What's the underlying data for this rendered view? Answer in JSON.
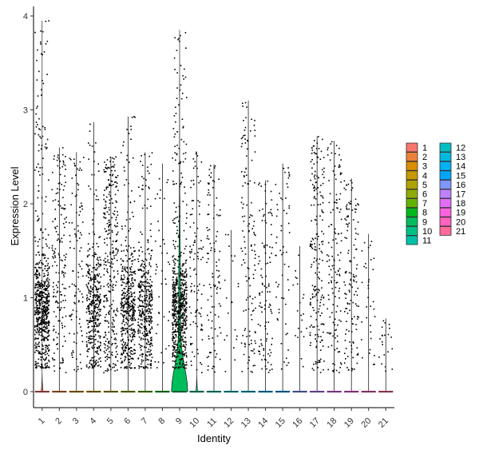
{
  "chart_data": {
    "type": "violin",
    "title": "",
    "xlabel": "Identity",
    "ylabel": "Expression Level",
    "ylim": [
      -0.2,
      4.1
    ],
    "yticks": [
      0,
      1,
      2,
      3,
      4
    ],
    "grid": false,
    "legend_position": "right",
    "points_overlay": true,
    "point_color": "#000000",
    "categories": [
      "1",
      "2",
      "3",
      "4",
      "5",
      "6",
      "7",
      "8",
      "9",
      "10",
      "11",
      "12",
      "13",
      "14",
      "15",
      "16",
      "17",
      "18",
      "19",
      "20",
      "21"
    ],
    "colors": [
      "#F8766D",
      "#EC8239",
      "#DB8E00",
      "#C79800",
      "#AEA200",
      "#8FAA00",
      "#64B200",
      "#00B81B",
      "#00BD5C",
      "#00C085",
      "#00C1A7",
      "#00BFC4",
      "#00BADE",
      "#00B2F3",
      "#00A6FF",
      "#7F96FF",
      "#BC81FF",
      "#E26EF7",
      "#F863DF",
      "#FF62BF",
      "#FF6A9A"
    ],
    "series": [
      {
        "name": "1",
        "max": 3.95,
        "point_density": 1.0,
        "violin_peak": 0.12
      },
      {
        "name": "2",
        "max": 2.6,
        "point_density": 0.25,
        "violin_peak": 0.0
      },
      {
        "name": "3",
        "max": 2.55,
        "point_density": 0.15,
        "violin_peak": 0.0
      },
      {
        "name": "4",
        "max": 2.87,
        "point_density": 0.6,
        "violin_peak": 0.0
      },
      {
        "name": "5",
        "max": 2.5,
        "point_density": 0.45,
        "violin_peak": 0.0
      },
      {
        "name": "6",
        "max": 2.93,
        "point_density": 0.65,
        "violin_peak": 0.0
      },
      {
        "name": "7",
        "max": 2.55,
        "point_density": 0.6,
        "violin_peak": 0.0
      },
      {
        "name": "8",
        "max": 2.43,
        "point_density": 0.05,
        "violin_peak": 0.0
      },
      {
        "name": "9",
        "max": 3.85,
        "point_density": 1.0,
        "violin_peak": 1.0
      },
      {
        "name": "10",
        "max": 2.55,
        "point_density": 0.15,
        "violin_peak": 0.1
      },
      {
        "name": "11",
        "max": 2.42,
        "point_density": 0.15,
        "violin_peak": 0.0
      },
      {
        "name": "12",
        "max": 1.72,
        "point_density": 0.02,
        "violin_peak": 0.0
      },
      {
        "name": "13",
        "max": 3.1,
        "point_density": 0.2,
        "violin_peak": 0.0
      },
      {
        "name": "14",
        "max": 2.25,
        "point_density": 0.15,
        "violin_peak": 0.0
      },
      {
        "name": "15",
        "max": 2.43,
        "point_density": 0.08,
        "violin_peak": 0.0
      },
      {
        "name": "16",
        "max": 1.55,
        "point_density": 0.02,
        "violin_peak": 0.0
      },
      {
        "name": "17",
        "max": 2.72,
        "point_density": 0.3,
        "violin_peak": 0.0
      },
      {
        "name": "18",
        "max": 2.67,
        "point_density": 0.2,
        "violin_peak": 0.0
      },
      {
        "name": "19",
        "max": 2.27,
        "point_density": 0.2,
        "violin_peak": 0.0
      },
      {
        "name": "20",
        "max": 1.68,
        "point_density": 0.04,
        "violin_peak": 0.0
      },
      {
        "name": "21",
        "max": 0.78,
        "point_density": 0.02,
        "violin_peak": 0.0
      }
    ]
  }
}
